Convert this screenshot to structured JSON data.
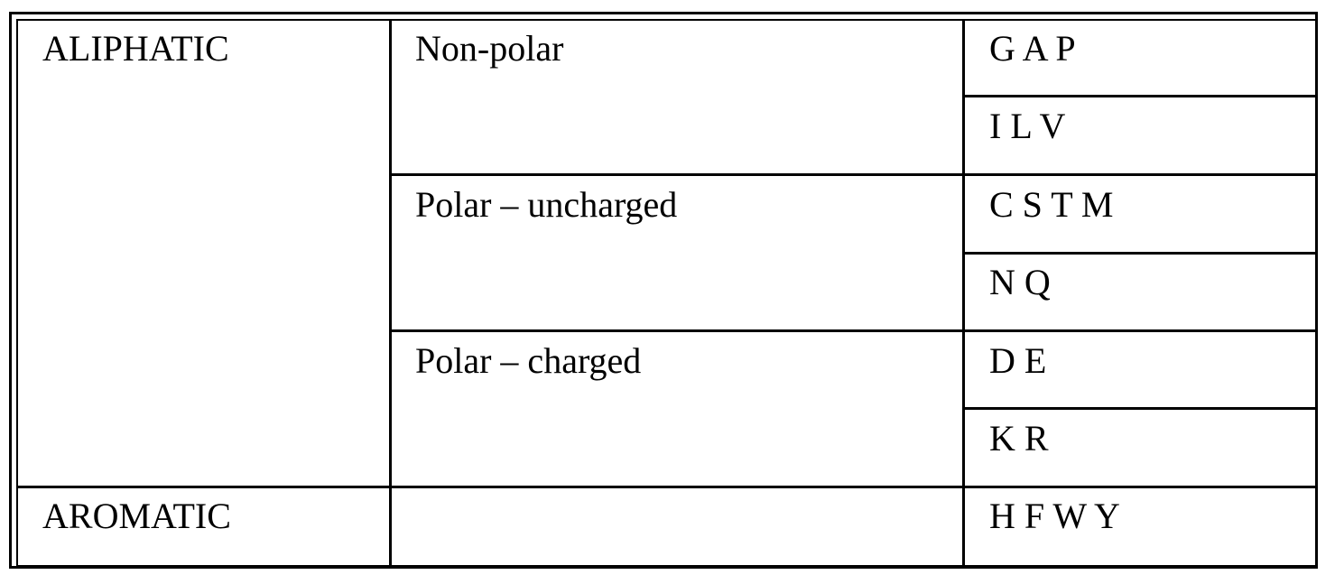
{
  "table": {
    "rows": [
      {
        "category": "ALIPHATIC",
        "subcategory": "Non-polar",
        "residues": [
          "G A P",
          "I L V"
        ]
      },
      {
        "subcategory": "Polar – uncharged",
        "residues": [
          "C S T M",
          "N Q"
        ]
      },
      {
        "subcategory": "Polar – charged",
        "residues": [
          "D E",
          "K R"
        ]
      },
      {
        "category": "AROMATIC",
        "subcategory": "",
        "residues": [
          "H F W Y"
        ]
      }
    ]
  }
}
